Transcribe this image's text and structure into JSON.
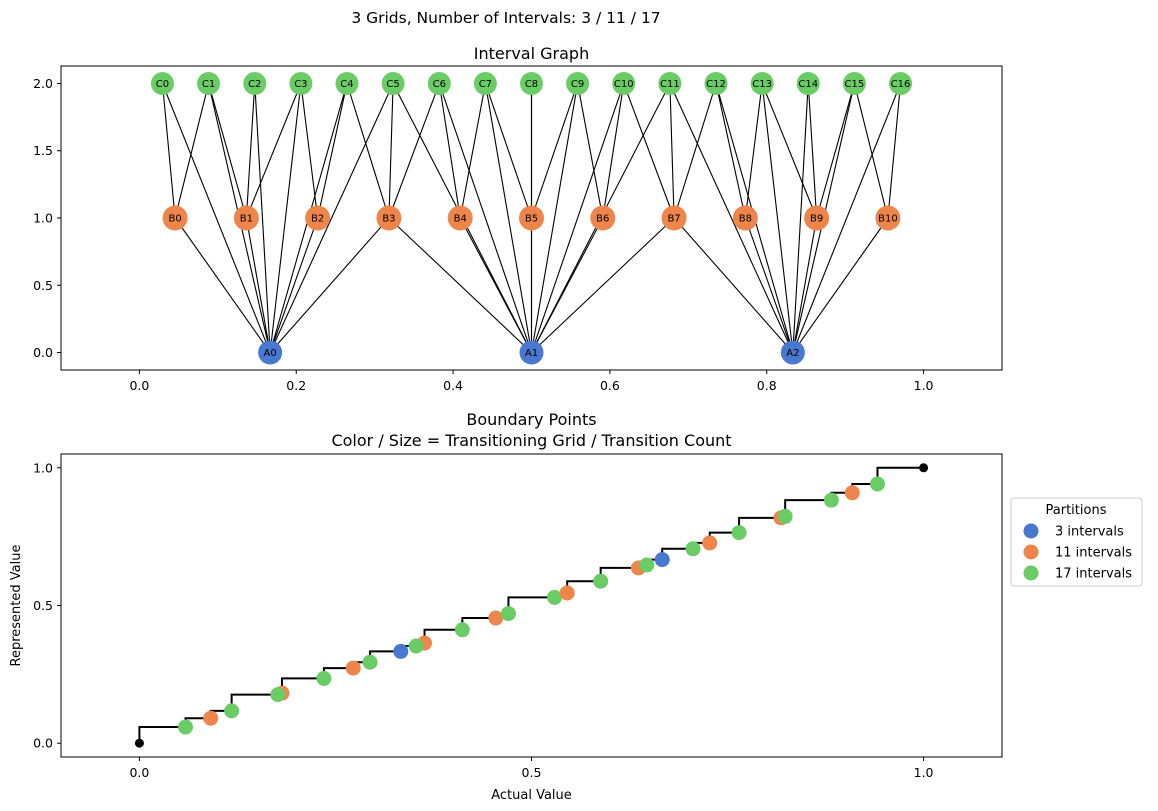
{
  "figure": {
    "suptitle": "3 Grids, Number of Intervals: 3 / 11 / 17"
  },
  "colors": {
    "grid3": "#4878cf",
    "grid11": "#ee854a",
    "grid17": "#6acc64",
    "edge": "#000000",
    "step": "#000000"
  },
  "chart_data": [
    {
      "type": "scatter",
      "title": "Interval Graph",
      "xlabel": "",
      "ylabel": "",
      "xlim": [
        -0.1,
        1.1
      ],
      "ylim": [
        -0.13,
        2.13
      ],
      "xticks": [
        "0.0",
        "0.2",
        "0.4",
        "0.6",
        "0.8",
        "1.0"
      ],
      "yticks": [
        "0.0",
        "0.5",
        "1.0",
        "1.5",
        "2.0"
      ],
      "grid": false,
      "node_groups": [
        {
          "level": 0,
          "color": "grid3",
          "nodes": [
            {
              "label": "A0",
              "x": 0.1667
            },
            {
              "label": "A1",
              "x": 0.5
            },
            {
              "label": "A2",
              "x": 0.8333
            }
          ]
        },
        {
          "level": 1,
          "color": "grid11",
          "nodes": [
            {
              "label": "B0",
              "x": 0.0455
            },
            {
              "label": "B1",
              "x": 0.1364
            },
            {
              "label": "B2",
              "x": 0.2273
            },
            {
              "label": "B3",
              "x": 0.3182
            },
            {
              "label": "B4",
              "x": 0.4091
            },
            {
              "label": "B5",
              "x": 0.5
            },
            {
              "label": "B6",
              "x": 0.5909
            },
            {
              "label": "B7",
              "x": 0.6818
            },
            {
              "label": "B8",
              "x": 0.7727
            },
            {
              "label": "B9",
              "x": 0.8636
            },
            {
              "label": "B10",
              "x": 0.9545
            }
          ]
        },
        {
          "level": 2,
          "color": "grid17",
          "nodes": [
            {
              "label": "C0",
              "x": 0.0294
            },
            {
              "label": "C1",
              "x": 0.0882
            },
            {
              "label": "C2",
              "x": 0.1471
            },
            {
              "label": "C3",
              "x": 0.2059
            },
            {
              "label": "C4",
              "x": 0.2647
            },
            {
              "label": "C5",
              "x": 0.3235
            },
            {
              "label": "C6",
              "x": 0.3824
            },
            {
              "label": "C7",
              "x": 0.4412
            },
            {
              "label": "C8",
              "x": 0.5
            },
            {
              "label": "C9",
              "x": 0.5588
            },
            {
              "label": "C10",
              "x": 0.6176
            },
            {
              "label": "C11",
              "x": 0.6765
            },
            {
              "label": "C12",
              "x": 0.7353
            },
            {
              "label": "C13",
              "x": 0.7941
            },
            {
              "label": "C14",
              "x": 0.8529
            },
            {
              "label": "C15",
              "x": 0.9118
            },
            {
              "label": "C16",
              "x": 0.9706
            }
          ]
        }
      ]
    },
    {
      "type": "scatter",
      "title": "Boundary Points\nColor / Size = Transitioning Grid / Transition Count",
      "xlabel": "Actual Value",
      "ylabel": "Represented Value",
      "xlim": [
        -0.1,
        1.1
      ],
      "ylim": [
        -0.05,
        1.05
      ],
      "xticks": [
        "0.0",
        "0.5",
        "1.0"
      ],
      "yticks": [
        "0.0",
        "0.5",
        "1.0"
      ],
      "grid": false,
      "legend": {
        "title": "Partitions",
        "placement": "center-right outside",
        "entries": [
          {
            "label": "3 intervals",
            "color": "grid3"
          },
          {
            "label": "11 intervals",
            "color": "grid11"
          },
          {
            "label": "17 intervals",
            "color": "grid17"
          }
        ]
      },
      "steps": [
        [
          0.0,
          0.0588
        ],
        [
          0.0588,
          0.0909
        ],
        [
          0.0909,
          0.1176
        ],
        [
          0.1176,
          0.1765
        ],
        [
          0.1765,
          0.1818
        ],
        [
          0.1818,
          0.2353
        ],
        [
          0.2353,
          0.2727
        ],
        [
          0.2727,
          0.2941
        ],
        [
          0.2941,
          0.3333
        ],
        [
          0.3333,
          0.3529
        ],
        [
          0.3529,
          0.3636
        ],
        [
          0.3636,
          0.4118
        ],
        [
          0.4118,
          0.4545
        ],
        [
          0.4545,
          0.4706
        ],
        [
          0.4706,
          0.5294
        ],
        [
          0.5294,
          0.5455
        ],
        [
          0.5455,
          0.5882
        ],
        [
          0.5882,
          0.6364
        ],
        [
          0.6364,
          0.6471
        ],
        [
          0.6471,
          0.6667
        ],
        [
          0.6667,
          0.7059
        ],
        [
          0.7059,
          0.7273
        ],
        [
          0.7273,
          0.7647
        ],
        [
          0.7647,
          0.8182
        ],
        [
          0.8182,
          0.8235
        ],
        [
          0.8235,
          0.8824
        ],
        [
          0.8824,
          0.9091
        ],
        [
          0.9091,
          0.9412
        ],
        [
          0.9412,
          1.0
        ]
      ],
      "endpoints": [
        [
          0.0,
          0.0
        ],
        [
          1.0,
          1.0
        ]
      ],
      "points": [
        {
          "x": 0.0588,
          "y": 0.0588,
          "grid": "grid17"
        },
        {
          "x": 0.0909,
          "y": 0.0909,
          "grid": "grid11"
        },
        {
          "x": 0.1176,
          "y": 0.1176,
          "grid": "grid17"
        },
        {
          "x": 0.1818,
          "y": 0.1818,
          "grid": "grid11"
        },
        {
          "x": 0.1765,
          "y": 0.1765,
          "grid": "grid17"
        },
        {
          "x": 0.2353,
          "y": 0.2353,
          "grid": "grid17"
        },
        {
          "x": 0.2727,
          "y": 0.2727,
          "grid": "grid11"
        },
        {
          "x": 0.2941,
          "y": 0.2941,
          "grid": "grid17"
        },
        {
          "x": 0.3333,
          "y": 0.3333,
          "grid": "grid3"
        },
        {
          "x": 0.3636,
          "y": 0.3636,
          "grid": "grid11"
        },
        {
          "x": 0.3529,
          "y": 0.3529,
          "grid": "grid17"
        },
        {
          "x": 0.4118,
          "y": 0.4118,
          "grid": "grid17"
        },
        {
          "x": 0.4545,
          "y": 0.4545,
          "grid": "grid11"
        },
        {
          "x": 0.4706,
          "y": 0.4706,
          "grid": "grid17"
        },
        {
          "x": 0.5294,
          "y": 0.5294,
          "grid": "grid17"
        },
        {
          "x": 0.5455,
          "y": 0.5455,
          "grid": "grid11"
        },
        {
          "x": 0.5882,
          "y": 0.5882,
          "grid": "grid17"
        },
        {
          "x": 0.6364,
          "y": 0.6364,
          "grid": "grid11"
        },
        {
          "x": 0.6471,
          "y": 0.6471,
          "grid": "grid17"
        },
        {
          "x": 0.6667,
          "y": 0.6667,
          "grid": "grid3"
        },
        {
          "x": 0.7059,
          "y": 0.7059,
          "grid": "grid17"
        },
        {
          "x": 0.7273,
          "y": 0.7273,
          "grid": "grid11"
        },
        {
          "x": 0.7647,
          "y": 0.7647,
          "grid": "grid17"
        },
        {
          "x": 0.8182,
          "y": 0.8182,
          "grid": "grid11"
        },
        {
          "x": 0.8235,
          "y": 0.8235,
          "grid": "grid17"
        },
        {
          "x": 0.8824,
          "y": 0.8824,
          "grid": "grid17"
        },
        {
          "x": 0.9091,
          "y": 0.9091,
          "grid": "grid11"
        },
        {
          "x": 0.9412,
          "y": 0.9412,
          "grid": "grid17"
        }
      ]
    }
  ]
}
